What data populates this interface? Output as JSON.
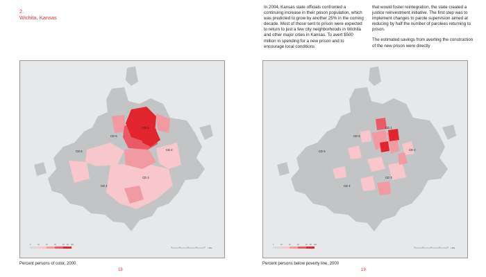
{
  "chapter": {
    "number": "2.",
    "title": "Wichita, Kansas"
  },
  "body": {
    "col_a": "In 2004, Kansas state officials confronted a continuing increase in their prison population, which was predicted to grow by another 25% in the coming decade. Most of those sent to prison were expected to return to just a few city neighborhoods in Wichita and other major cities in Kansas. To avert $500 million in spending for a new prison and to encourage local conditions",
    "col_b_p1": "that would foster reintegration, the state created a justice reinvestment initiative. The first step was to implement changes to parole supervision aimed at reducing by half the number of parolees returning to prison.",
    "col_b_p2": "The estimated savings from averting the construction of the new prison were directly"
  },
  "maps": [
    {
      "caption": "Percent persons of color, 2000",
      "page_number": "18",
      "district_labels": [
        "CD 1",
        "CD 2",
        "CD 3",
        "CD 4",
        "CD 5",
        "CD 6"
      ],
      "legend_ticks": [
        "0",
        "10",
        "20",
        "30",
        "40",
        "50",
        "100"
      ],
      "scale_label": "1 Mile"
    },
    {
      "caption": "Percent persons below poverty line, 2000",
      "page_number": "19",
      "district_labels": [
        "CD 1",
        "CD 2",
        "CD 3",
        "CD 4",
        "CD 5",
        "CD 6"
      ],
      "legend_ticks": [
        "0",
        "10",
        "20",
        "30",
        "40",
        "50",
        "100"
      ],
      "scale_label": "1 Mile"
    }
  ],
  "colors": {
    "accent": "#e52e3b",
    "map_background": "#e7e8ea",
    "tract_gray": "#c3c4c6",
    "red_light": "#f7c7cb",
    "red_mid": "#f19aa1",
    "red_strong": "#ea5a66",
    "red_dark": "#e1252f"
  }
}
